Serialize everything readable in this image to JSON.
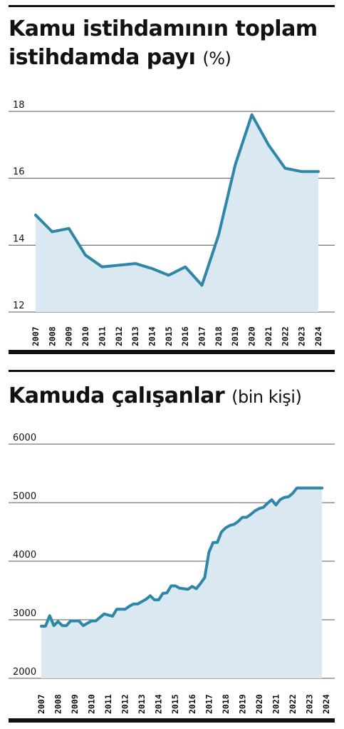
{
  "chart_data": [
    {
      "type": "area",
      "title": "Kamu istihdamının toplam istihdamda payı",
      "title_line1": "Kamu istihdamının toplam",
      "title_line2": "istihdamda payı",
      "unit": "(%)",
      "yticks": [
        "18",
        "16",
        "14",
        "12"
      ],
      "ylim": [
        12,
        18
      ],
      "grid": true,
      "line_color": "#2e86a8",
      "fill_color": "#d9e8f1",
      "categories": [
        "2007",
        "2008",
        "2009",
        "2010",
        "2011",
        "2012",
        "2013",
        "2014",
        "2015",
        "2016",
        "2017",
        "2018",
        "2019",
        "2020",
        "2021",
        "2022",
        "2023",
        "2024"
      ],
      "values": [
        14.9,
        14.4,
        14.5,
        13.7,
        13.35,
        13.4,
        13.45,
        13.3,
        13.1,
        13.35,
        12.8,
        14.3,
        16.4,
        17.9,
        17.0,
        16.3,
        16.2,
        16.2
      ]
    },
    {
      "type": "area",
      "title": "Kamuda çalışanlar",
      "unit": "(bin kişi)",
      "yticks": [
        "6000",
        "5000",
        "4000",
        "3000",
        "2000"
      ],
      "ylim": [
        2000,
        6000
      ],
      "grid": true,
      "line_color": "#2e86a8",
      "fill_color": "#d9e8f1",
      "categories": [
        "2007",
        "2008",
        "2009",
        "2010",
        "2011",
        "2012",
        "2013",
        "2014",
        "2015",
        "2016",
        "2017",
        "2018",
        "2019",
        "2020",
        "2021",
        "2022",
        "2023",
        "2024"
      ],
      "x": [
        2007.0,
        2007.25,
        2007.5,
        2007.75,
        2008.0,
        2008.25,
        2008.5,
        2008.75,
        2009.0,
        2009.25,
        2009.5,
        2009.75,
        2010.0,
        2010.25,
        2010.5,
        2010.75,
        2011.0,
        2011.25,
        2011.5,
        2011.75,
        2012.0,
        2012.25,
        2012.5,
        2012.75,
        2013.0,
        2013.25,
        2013.5,
        2013.75,
        2014.0,
        2014.25,
        2014.5,
        2014.75,
        2015.0,
        2015.25,
        2015.5,
        2015.75,
        2016.0,
        2016.25,
        2016.5,
        2016.75,
        2017.0,
        2017.25,
        2017.5,
        2017.75,
        2018.0,
        2018.25,
        2018.5,
        2018.75,
        2019.0,
        2019.25,
        2019.5,
        2019.75,
        2020.0,
        2020.25,
        2020.5,
        2020.75,
        2021.0,
        2021.25,
        2021.5,
        2021.75,
        2022.0,
        2022.25,
        2022.5,
        2022.75,
        2023.0,
        2023.25,
        2023.5,
        2023.75
      ],
      "values": [
        2890,
        2890,
        3070,
        2900,
        2970,
        2900,
        2900,
        2980,
        2980,
        2980,
        2900,
        2940,
        2980,
        2980,
        3040,
        3100,
        3080,
        3060,
        3180,
        3180,
        3180,
        3230,
        3270,
        3270,
        3310,
        3350,
        3410,
        3340,
        3340,
        3450,
        3460,
        3580,
        3580,
        3540,
        3530,
        3520,
        3570,
        3530,
        3620,
        3720,
        4150,
        4320,
        4320,
        4500,
        4570,
        4610,
        4630,
        4680,
        4750,
        4750,
        4800,
        4860,
        4900,
        4920,
        4990,
        5050,
        4960,
        5050,
        5090,
        5100,
        5160,
        5250,
        5250,
        5250,
        5250,
        5250,
        5250,
        5250
      ]
    }
  ]
}
